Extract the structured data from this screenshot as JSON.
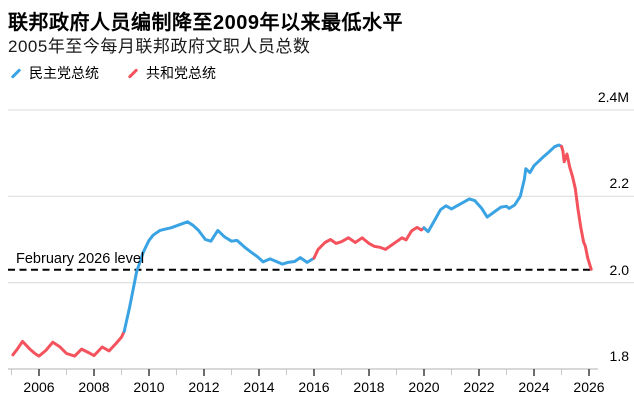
{
  "header": {
    "title": "联邦政府人员编制降至2009年以来最低水平",
    "subtitle": "2005年至今每月联邦政府文职人员总数"
  },
  "legend": {
    "items": [
      {
        "label": "民主党总统",
        "color": "#3aa3e3",
        "party": "democrat"
      },
      {
        "label": "共和党总统",
        "color": "#f4525c",
        "party": "republican"
      }
    ]
  },
  "chart_data": {
    "type": "line",
    "title": "联邦政府人员编制降至2009年以来最低水平",
    "subtitle": "2005年至今每月联邦政府文职人员总数",
    "unit": "millions of employees",
    "ylim": [
      1.8,
      2.4
    ],
    "xlim": [
      2005,
      2026.5
    ],
    "grid": "horizontal",
    "legend_position": "top-left",
    "y_ticks": [
      {
        "label": "2.4M",
        "value": 2.4
      },
      {
        "label": "2.2",
        "value": 2.2
      },
      {
        "label": "2.0",
        "value": 2.0
      },
      {
        "label": "1.8",
        "value": 1.8
      }
    ],
    "x_axis": {
      "major_ticks": [
        2006,
        2008,
        2010,
        2012,
        2014,
        2016,
        2018,
        2020,
        2022,
        2024,
        2026
      ],
      "minor_ticks": [
        2005,
        2007,
        2009,
        2011,
        2013,
        2015,
        2017,
        2019,
        2021,
        2023,
        2025
      ]
    },
    "annotation": {
      "label": "February 2026 level",
      "value": 2.03
    },
    "series": [
      {
        "name": "共和党总统",
        "party": "republican",
        "color": "#f4525c",
        "points": [
          [
            2005.05,
            1.833
          ],
          [
            2005.2,
            1.845
          ],
          [
            2005.4,
            1.864
          ],
          [
            2005.65,
            1.847
          ],
          [
            2005.85,
            1.836
          ],
          [
            2006.0,
            1.83
          ],
          [
            2006.25,
            1.843
          ],
          [
            2006.5,
            1.862
          ],
          [
            2006.75,
            1.852
          ],
          [
            2007.0,
            1.836
          ],
          [
            2007.3,
            1.83
          ],
          [
            2007.55,
            1.846
          ],
          [
            2007.8,
            1.838
          ],
          [
            2008.0,
            1.831
          ],
          [
            2008.3,
            1.851
          ],
          [
            2008.55,
            1.842
          ],
          [
            2008.8,
            1.859
          ],
          [
            2009.0,
            1.874
          ],
          [
            2009.1,
            1.887
          ]
        ]
      },
      {
        "name": "民主党总统",
        "party": "democrat",
        "color": "#3aa3e3",
        "points": [
          [
            2009.1,
            1.887
          ],
          [
            2009.3,
            1.944
          ],
          [
            2009.55,
            2.025
          ],
          [
            2009.8,
            2.072
          ],
          [
            2010.0,
            2.098
          ],
          [
            2010.15,
            2.11
          ],
          [
            2010.4,
            2.121
          ],
          [
            2010.6,
            2.124
          ],
          [
            2010.8,
            2.127
          ],
          [
            2011.1,
            2.134
          ],
          [
            2011.4,
            2.141
          ],
          [
            2011.6,
            2.133
          ],
          [
            2011.8,
            2.121
          ],
          [
            2012.05,
            2.1
          ],
          [
            2012.25,
            2.096
          ],
          [
            2012.5,
            2.121
          ],
          [
            2012.75,
            2.106
          ],
          [
            2013.0,
            2.096
          ],
          [
            2013.2,
            2.098
          ],
          [
            2013.5,
            2.081
          ],
          [
            2013.75,
            2.069
          ],
          [
            2013.95,
            2.06
          ],
          [
            2014.15,
            2.048
          ],
          [
            2014.4,
            2.055
          ],
          [
            2014.6,
            2.05
          ],
          [
            2014.85,
            2.043
          ],
          [
            2015.05,
            2.047
          ],
          [
            2015.3,
            2.049
          ],
          [
            2015.5,
            2.058
          ],
          [
            2015.75,
            2.047
          ],
          [
            2016.0,
            2.057
          ]
        ]
      },
      {
        "name": "共和党总统",
        "party": "republican",
        "color": "#f4525c",
        "points": [
          [
            2016.0,
            2.057
          ],
          [
            2016.15,
            2.077
          ],
          [
            2016.4,
            2.093
          ],
          [
            2016.6,
            2.1
          ],
          [
            2016.8,
            2.091
          ],
          [
            2017.0,
            2.095
          ],
          [
            2017.25,
            2.104
          ],
          [
            2017.5,
            2.093
          ],
          [
            2017.75,
            2.104
          ],
          [
            2018.0,
            2.091
          ],
          [
            2018.2,
            2.084
          ],
          [
            2018.4,
            2.082
          ],
          [
            2018.6,
            2.077
          ],
          [
            2018.8,
            2.086
          ],
          [
            2019.0,
            2.095
          ],
          [
            2019.2,
            2.104
          ],
          [
            2019.35,
            2.099
          ],
          [
            2019.55,
            2.12
          ],
          [
            2019.75,
            2.128
          ],
          [
            2019.9,
            2.122
          ],
          [
            2020.0,
            2.127
          ]
        ]
      },
      {
        "name": "民主党总统",
        "party": "democrat",
        "color": "#3aa3e3",
        "points": [
          [
            2020.0,
            2.127
          ],
          [
            2020.15,
            2.118
          ],
          [
            2020.4,
            2.146
          ],
          [
            2020.6,
            2.169
          ],
          [
            2020.8,
            2.178
          ],
          [
            2021.0,
            2.171
          ],
          [
            2021.2,
            2.178
          ],
          [
            2021.4,
            2.185
          ],
          [
            2021.65,
            2.194
          ],
          [
            2021.85,
            2.19
          ],
          [
            2022.1,
            2.172
          ],
          [
            2022.3,
            2.152
          ],
          [
            2022.6,
            2.166
          ],
          [
            2022.8,
            2.175
          ],
          [
            2023.0,
            2.177
          ],
          [
            2023.1,
            2.172
          ],
          [
            2023.3,
            2.18
          ],
          [
            2023.5,
            2.2
          ],
          [
            2023.65,
            2.24
          ],
          [
            2023.7,
            2.264
          ],
          [
            2023.85,
            2.255
          ],
          [
            2024.0,
            2.271
          ],
          [
            2024.15,
            2.28
          ],
          [
            2024.35,
            2.292
          ],
          [
            2024.55,
            2.303
          ],
          [
            2024.75,
            2.315
          ],
          [
            2024.9,
            2.319
          ],
          [
            2025.0,
            2.316
          ]
        ]
      },
      {
        "name": "共和党总统",
        "party": "republican",
        "color": "#f4525c",
        "points": [
          [
            2025.0,
            2.316
          ],
          [
            2025.05,
            2.305
          ],
          [
            2025.1,
            2.28
          ],
          [
            2025.2,
            2.298
          ],
          [
            2025.3,
            2.268
          ],
          [
            2025.4,
            2.246
          ],
          [
            2025.5,
            2.218
          ],
          [
            2025.6,
            2.17
          ],
          [
            2025.7,
            2.128
          ],
          [
            2025.8,
            2.095
          ],
          [
            2025.87,
            2.084
          ],
          [
            2025.95,
            2.058
          ],
          [
            2026.08,
            2.031
          ]
        ]
      }
    ]
  }
}
